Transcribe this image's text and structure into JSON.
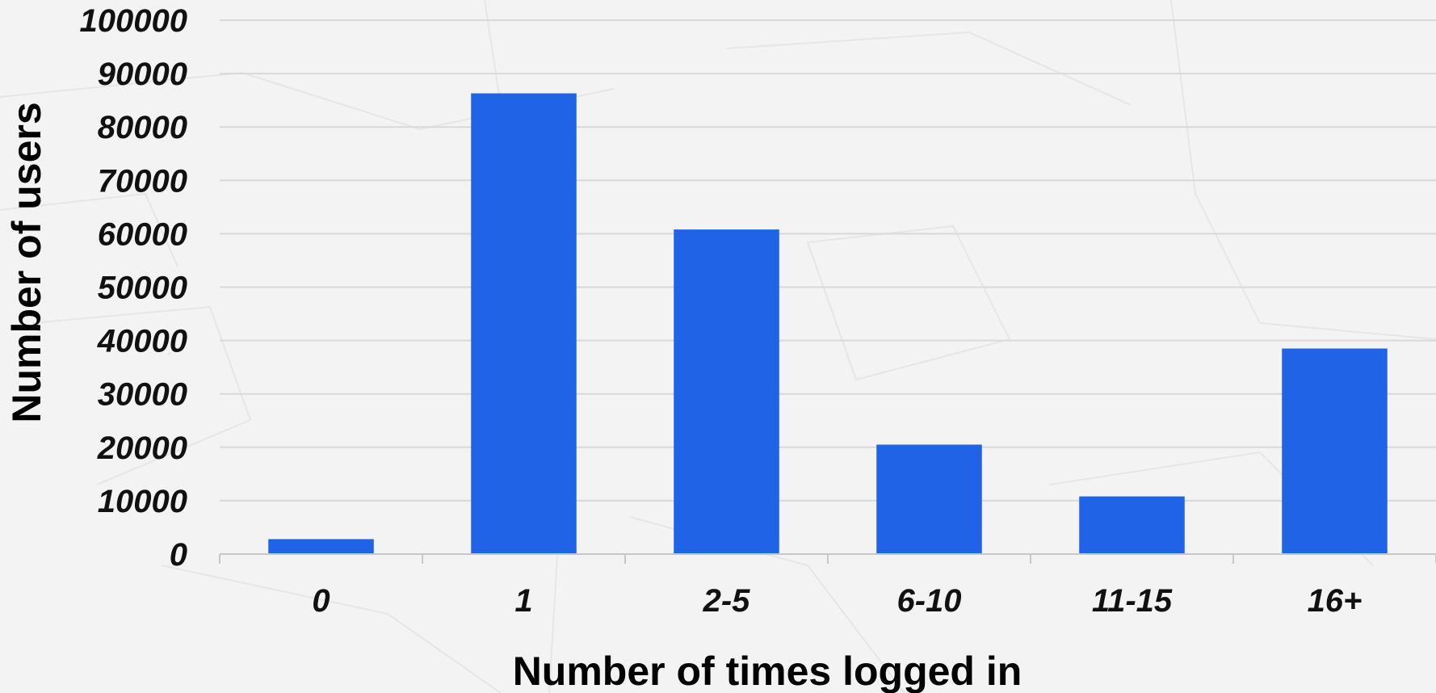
{
  "chart_data": {
    "type": "bar",
    "title": "",
    "xlabel": "Number of times logged in",
    "ylabel": "Number of users",
    "categories": [
      "0",
      "1",
      "2-5",
      "6-10",
      "11-15",
      "16+"
    ],
    "values": [
      2800,
      86300,
      60800,
      20500,
      10800,
      38500
    ],
    "ylim": [
      0,
      100000
    ],
    "yticks": [
      0,
      10000,
      20000,
      30000,
      40000,
      50000,
      60000,
      70000,
      80000,
      90000,
      100000
    ],
    "ytick_labels": [
      "0",
      "10000",
      "20000",
      "30000",
      "40000",
      "50000",
      "60000",
      "70000",
      "80000",
      "90000",
      "100000"
    ],
    "grid": true,
    "legend": "none",
    "bar_color": "#2163e6"
  }
}
